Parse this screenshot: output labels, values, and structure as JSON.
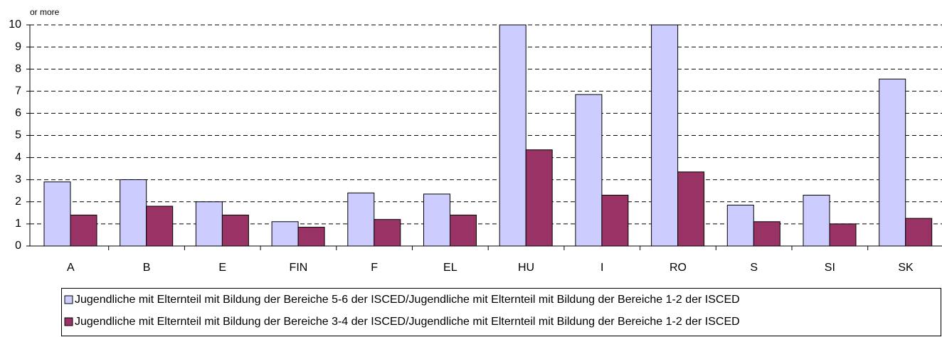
{
  "chart_data": {
    "type": "bar",
    "annotation": "or more",
    "categories": [
      "A",
      "B",
      "E",
      "FIN",
      "F",
      "EL",
      "HU",
      "I",
      "RO",
      "S",
      "SI",
      "SK"
    ],
    "series": [
      {
        "name": "Jugendliche mit Elternteil mit Bildung der Bereiche 5-6 der ISCED/Jugendliche mit Elternteil mit Bildung der Bereiche 1-2 der ISCED",
        "color": "#ccccff",
        "values": [
          2.9,
          3.0,
          2.0,
          1.1,
          2.4,
          2.35,
          10,
          6.85,
          10,
          1.85,
          2.3,
          7.55
        ]
      },
      {
        "name": "Jugendliche mit Elternteil mit Bildung der Bereiche 3-4 der ISCED/Jugendliche mit Elternteil mit Bildung der Bereiche 1-2 der ISCED",
        "color": "#993366",
        "values": [
          1.4,
          1.8,
          1.4,
          0.85,
          1.2,
          1.4,
          4.35,
          2.3,
          3.35,
          1.1,
          1.0,
          1.25
        ]
      }
    ],
    "ylim": [
      0,
      10
    ],
    "yticks": [
      0,
      1,
      2,
      3,
      4,
      5,
      6,
      7,
      8,
      9,
      10
    ],
    "grid": true
  }
}
